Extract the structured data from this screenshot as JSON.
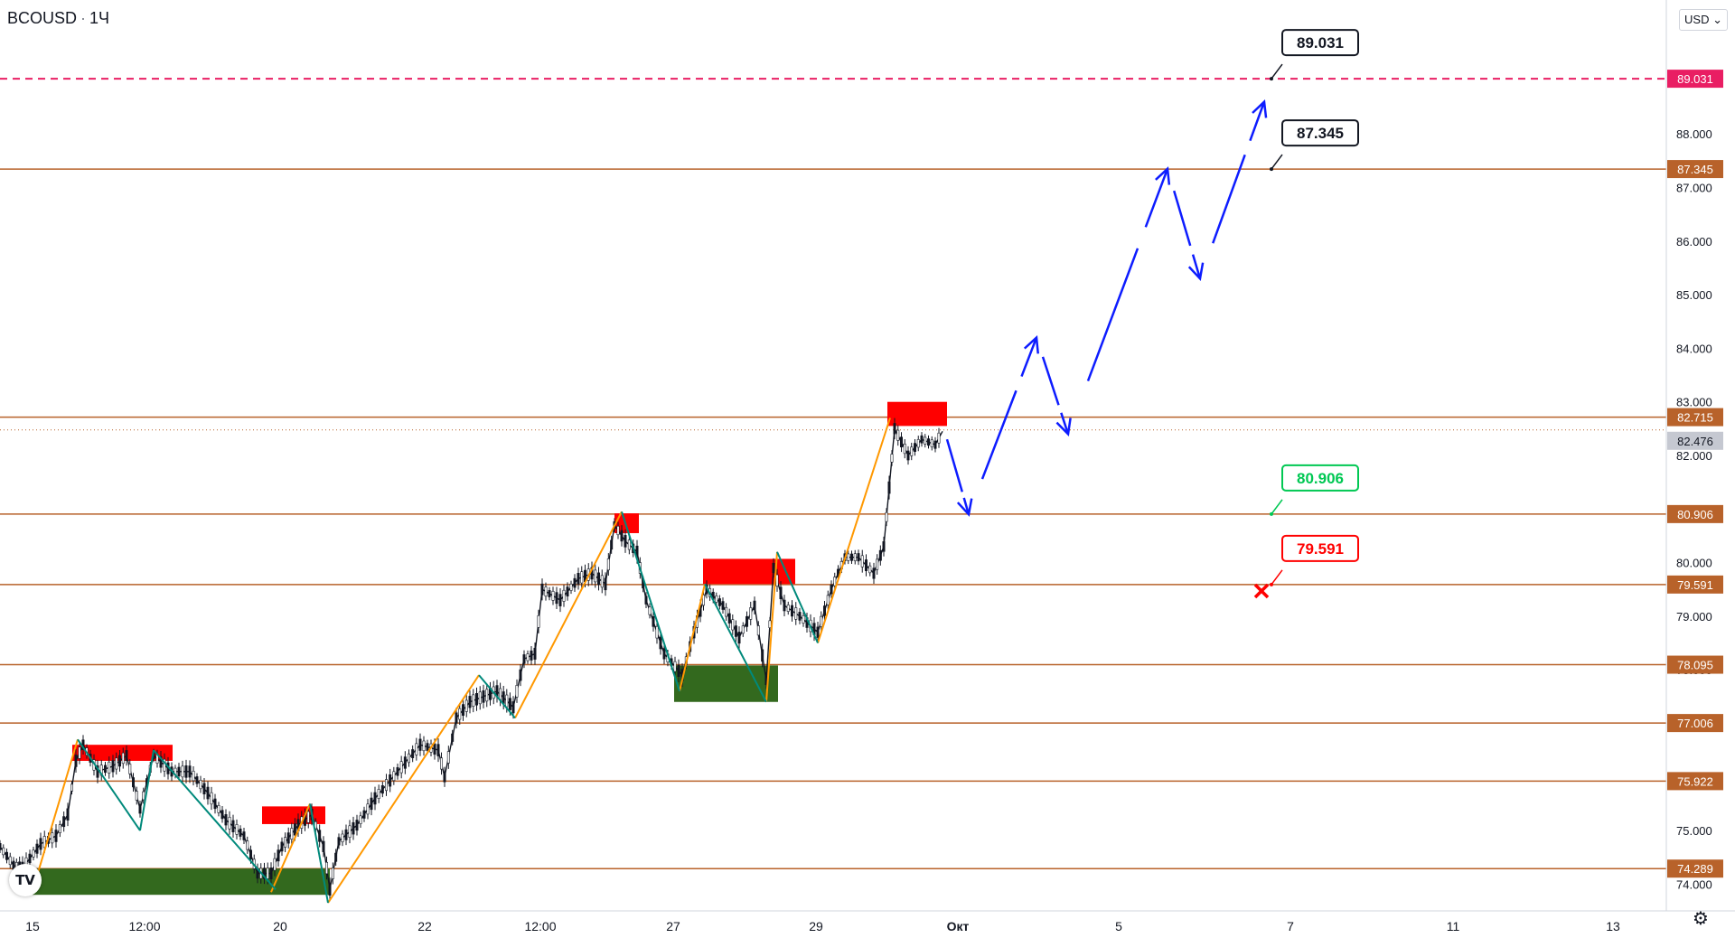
{
  "symbol": {
    "ticker": "BCOUSD",
    "interval": "1Ч"
  },
  "currency_button": "USD",
  "colors": {
    "level_line": "#b8622a",
    "top_level": "#e91e63",
    "up_candle": "#131722",
    "supply_zone": "#ff0000",
    "demand_zone": "#33691e",
    "impulse_up": "#ff9800",
    "impulse_down": "#00897b",
    "forecast": "#0d1cff"
  },
  "icons": {
    "logo": "tradingview-logo-icon",
    "settings": "gear-icon",
    "invalidation": "cross-icon"
  },
  "chart_data": {
    "type": "line",
    "title": "",
    "xlabel": "",
    "ylabel": "",
    "x_ticks": [
      "15",
      "12:00",
      "20",
      "22",
      "12:00",
      "27",
      "29",
      "Окт",
      "5",
      "7",
      "11",
      "13"
    ],
    "y_ticks": [
      "74.000",
      "75.000",
      "76.000",
      "77.000",
      "78.000",
      "79.000",
      "80.000",
      "81.000",
      "82.000",
      "83.000",
      "84.000",
      "85.000",
      "86.000",
      "87.000",
      "88.000"
    ],
    "ylim": [
      73.5,
      90.5
    ],
    "grid": false,
    "current_price": "82.476",
    "levels": [
      {
        "label": "89.031",
        "value": 89.031,
        "style": "dashed"
      },
      {
        "label": "87.345",
        "value": 87.345,
        "style": "solid"
      },
      {
        "label": "82.715",
        "value": 82.715,
        "style": "solid"
      },
      {
        "label": "80.906",
        "value": 80.906,
        "style": "solid"
      },
      {
        "label": "79.591",
        "value": 79.591,
        "style": "solid"
      },
      {
        "label": "78.095",
        "value": 78.095,
        "style": "solid"
      },
      {
        "label": "77.006",
        "value": 77.006,
        "style": "solid"
      },
      {
        "label": "75.922",
        "value": 75.922,
        "style": "solid"
      },
      {
        "label": "74.289",
        "value": 74.289,
        "style": "solid"
      }
    ],
    "price_path": [
      {
        "t": 0,
        "p": 74.7
      },
      {
        "t": 15,
        "p": 74.35
      },
      {
        "t": 25,
        "p": 74.3
      },
      {
        "t": 45,
        "p": 74.75
      },
      {
        "t": 62,
        "p": 74.9
      },
      {
        "t": 75,
        "p": 75.3
      },
      {
        "t": 84,
        "p": 76.3
      },
      {
        "t": 92,
        "p": 76.6
      },
      {
        "t": 108,
        "p": 76.1
      },
      {
        "t": 125,
        "p": 76.2
      },
      {
        "t": 140,
        "p": 76.4
      },
      {
        "t": 155,
        "p": 75.4
      },
      {
        "t": 170,
        "p": 76.4
      },
      {
        "t": 190,
        "p": 76.1
      },
      {
        "t": 210,
        "p": 76.1
      },
      {
        "t": 230,
        "p": 75.7
      },
      {
        "t": 250,
        "p": 75.2
      },
      {
        "t": 270,
        "p": 74.9
      },
      {
        "t": 285,
        "p": 74.2
      },
      {
        "t": 300,
        "p": 74.2
      },
      {
        "t": 312,
        "p": 74.7
      },
      {
        "t": 330,
        "p": 75.1
      },
      {
        "t": 345,
        "p": 75.3
      },
      {
        "t": 358,
        "p": 74.7
      },
      {
        "t": 365,
        "p": 73.9
      },
      {
        "t": 375,
        "p": 74.8
      },
      {
        "t": 395,
        "p": 75.1
      },
      {
        "t": 415,
        "p": 75.6
      },
      {
        "t": 440,
        "p": 76.1
      },
      {
        "t": 465,
        "p": 76.6
      },
      {
        "t": 485,
        "p": 76.5
      },
      {
        "t": 492,
        "p": 76.0
      },
      {
        "t": 505,
        "p": 77.1
      },
      {
        "t": 520,
        "p": 77.4
      },
      {
        "t": 535,
        "p": 77.5
      },
      {
        "t": 550,
        "p": 77.6
      },
      {
        "t": 568,
        "p": 77.3
      },
      {
        "t": 580,
        "p": 78.2
      },
      {
        "t": 592,
        "p": 78.3
      },
      {
        "t": 600,
        "p": 79.5
      },
      {
        "t": 620,
        "p": 79.3
      },
      {
        "t": 640,
        "p": 79.7
      },
      {
        "t": 655,
        "p": 79.8
      },
      {
        "t": 670,
        "p": 79.6
      },
      {
        "t": 680,
        "p": 80.7
      },
      {
        "t": 692,
        "p": 80.4
      },
      {
        "t": 705,
        "p": 80.2
      },
      {
        "t": 715,
        "p": 79.3
      },
      {
        "t": 735,
        "p": 78.3
      },
      {
        "t": 755,
        "p": 77.9
      },
      {
        "t": 768,
        "p": 78.7
      },
      {
        "t": 782,
        "p": 79.5
      },
      {
        "t": 800,
        "p": 79.2
      },
      {
        "t": 818,
        "p": 78.6
      },
      {
        "t": 835,
        "p": 79.2
      },
      {
        "t": 848,
        "p": 77.8
      },
      {
        "t": 856,
        "p": 79.9
      },
      {
        "t": 868,
        "p": 79.2
      },
      {
        "t": 885,
        "p": 79.0
      },
      {
        "t": 905,
        "p": 78.7
      },
      {
        "t": 920,
        "p": 79.5
      },
      {
        "t": 935,
        "p": 80.1
      },
      {
        "t": 950,
        "p": 80.1
      },
      {
        "t": 967,
        "p": 79.8
      },
      {
        "t": 978,
        "p": 80.3
      },
      {
        "t": 984,
        "p": 81.4
      },
      {
        "t": 990,
        "p": 82.5
      },
      {
        "t": 1005,
        "p": 82.0
      },
      {
        "t": 1020,
        "p": 82.3
      },
      {
        "t": 1035,
        "p": 82.2
      },
      {
        "t": 1043,
        "p": 82.45
      }
    ],
    "supply_zones": [
      {
        "t0": 80,
        "t1": 191,
        "lo": 76.3,
        "hi": 76.6
      },
      {
        "t0": 290,
        "t1": 360,
        "lo": 75.12,
        "hi": 75.45
      },
      {
        "t0": 680,
        "t1": 707,
        "lo": 80.55,
        "hi": 80.92
      },
      {
        "t0": 778,
        "t1": 880,
        "lo": 79.6,
        "hi": 80.07
      },
      {
        "t0": 982,
        "t1": 1048,
        "lo": 82.55,
        "hi": 83.0
      }
    ],
    "demand_zones": [
      {
        "t0": 36,
        "t1": 365,
        "lo": 73.8,
        "hi": 74.29
      },
      {
        "t0": 746,
        "t1": 861,
        "lo": 77.4,
        "hi": 78.08
      }
    ],
    "impulse_up": [
      [
        {
          "t": 40,
          "p": 74.1
        },
        {
          "t": 86,
          "p": 76.7
        }
      ],
      [
        {
          "t": 300,
          "p": 73.85
        },
        {
          "t": 343,
          "p": 75.5
        }
      ],
      [
        {
          "t": 363,
          "p": 73.65
        },
        {
          "t": 530,
          "p": 77.9
        }
      ],
      [
        {
          "t": 570,
          "p": 77.1
        },
        {
          "t": 688,
          "p": 80.95
        }
      ],
      [
        {
          "t": 752,
          "p": 77.6
        },
        {
          "t": 780,
          "p": 79.6
        }
      ],
      [
        {
          "t": 848,
          "p": 77.4
        },
        {
          "t": 860,
          "p": 80.2
        }
      ],
      [
        {
          "t": 905,
          "p": 78.5
        },
        {
          "t": 985,
          "p": 82.7
        }
      ]
    ],
    "impulse_down": [
      [
        {
          "t": 86,
          "p": 76.7
        },
        {
          "t": 155,
          "p": 75.0
        }
      ],
      [
        {
          "t": 155,
          "p": 75.0
        },
        {
          "t": 170,
          "p": 76.5
        }
      ],
      [
        {
          "t": 170,
          "p": 76.5
        },
        {
          "t": 305,
          "p": 73.9
        }
      ],
      [
        {
          "t": 343,
          "p": 75.5
        },
        {
          "t": 363,
          "p": 73.65
        }
      ],
      [
        {
          "t": 530,
          "p": 77.9
        },
        {
          "t": 570,
          "p": 77.1
        }
      ],
      [
        {
          "t": 688,
          "p": 80.95
        },
        {
          "t": 752,
          "p": 77.6
        }
      ],
      [
        {
          "t": 780,
          "p": 79.6
        },
        {
          "t": 848,
          "p": 77.4
        }
      ],
      [
        {
          "t": 860,
          "p": 80.2
        },
        {
          "t": 905,
          "p": 78.5
        }
      ]
    ],
    "forecast_path": [
      {
        "t": 1048,
        "p": 82.3
      },
      {
        "t": 1072,
        "p": 80.9
      },
      {
        "t": 1147,
        "p": 84.2
      },
      {
        "t": 1182,
        "p": 82.4
      },
      {
        "t": 1292,
        "p": 87.35
      },
      {
        "t": 1328,
        "p": 85.3
      },
      {
        "t": 1399,
        "p": 88.6
      }
    ],
    "annotations": [
      {
        "label": "89.031",
        "color": "#131722",
        "t": 1407,
        "p": 89.031
      },
      {
        "label": "87.345",
        "color": "#131722",
        "t": 1407,
        "p": 87.345
      },
      {
        "label": "80.906",
        "color": "#00c853",
        "t": 1407,
        "p": 80.906
      },
      {
        "label": "79.591",
        "color": "#ff0000",
        "t": 1407,
        "p": 79.591
      }
    ],
    "stop_marker": {
      "t": 1396,
      "p": 79.47
    }
  }
}
